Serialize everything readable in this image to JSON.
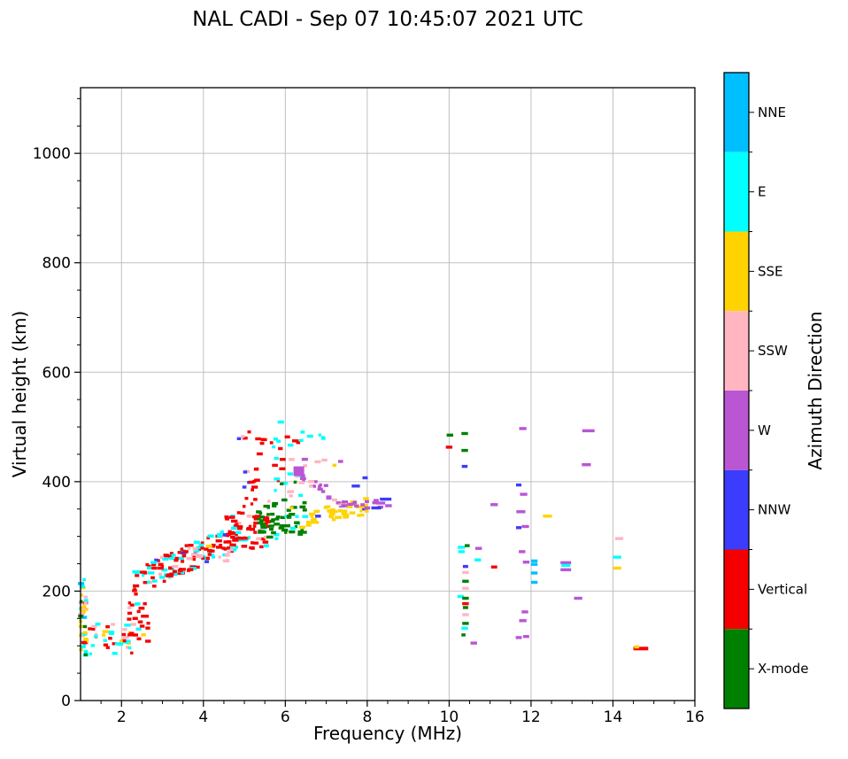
{
  "chart_data": {
    "type": "scatter",
    "title": "NAL CADI - Sep 07 10:45:07 2021 UTC",
    "xlabel": "Frequency (MHz)",
    "ylabel": "Virtual height (km)",
    "xlim": [
      1,
      16
    ],
    "ylim": [
      0,
      1120
    ],
    "xticks": [
      2,
      4,
      6,
      8,
      10,
      12,
      14,
      16
    ],
    "yticks": [
      0,
      200,
      400,
      600,
      800,
      1000
    ],
    "x_minor_step": 0.5,
    "y_minor_step": 50,
    "grid": true,
    "grid_color": "#c0c0c0",
    "colorbar": {
      "label": "Azimuth Direction",
      "categories": [
        {
          "name": "NNE",
          "color": "#00BFFF"
        },
        {
          "name": "E",
          "color": "#00FFFF"
        },
        {
          "name": "SSE",
          "color": "#FFD300"
        },
        {
          "name": "SSW",
          "color": "#FFB6C1"
        },
        {
          "name": "W",
          "color": "#BA55D3"
        },
        {
          "name": "NNW",
          "color": "#3C3CFC"
        },
        {
          "name": "Vertical",
          "color": "#F50000"
        },
        {
          "name": "X-mode",
          "color": "#008000"
        }
      ]
    },
    "clusters": [
      {
        "name": "edge-strip",
        "f": [
          1.0,
          1.14
        ],
        "h": [
          82,
          222
        ],
        "n": 42,
        "seed": 11,
        "mix": {
          "E": 0.3,
          "SSE": 0.22,
          "SSW": 0.2,
          "Vertical": 0.16,
          "NNE": 0.06,
          "X-mode": 0.06
        }
      },
      {
        "name": "low-scatter",
        "f": [
          1.2,
          2.25
        ],
        "h": [
          84,
          140
        ],
        "n": 36,
        "seed": 22,
        "mix": {
          "Vertical": 0.36,
          "E": 0.3,
          "SSW": 0.16,
          "SSE": 0.14,
          "NNW": 0.04
        }
      },
      {
        "name": "e-knot",
        "f": [
          2.18,
          2.68
        ],
        "h": [
          108,
          180
        ],
        "n": 26,
        "seed": 33,
        "mix": {
          "Vertical": 0.58,
          "E": 0.24,
          "SSW": 0.12,
          "SSE": 0.06
        }
      },
      {
        "name": "main-band",
        "f": [
          2.3,
          5.05
        ],
        "trend": {
          "h0": 216,
          "slope": 33,
          "jitter": 24
        },
        "n": 150,
        "seed": 44,
        "mix": {
          "Vertical": 0.56,
          "E": 0.31,
          "SSW": 0.09,
          "SSE": 0.02,
          "NNW": 0.02
        }
      },
      {
        "name": "f-blob",
        "f": [
          4.55,
          5.6
        ],
        "h": [
          278,
          338
        ],
        "n": 50,
        "seed": 55,
        "mix": {
          "Vertical": 0.72,
          "E": 0.18,
          "SSW": 0.1
        }
      },
      {
        "name": "red-spread",
        "f": [
          4.85,
          5.6
        ],
        "h": [
          338,
          500
        ],
        "n": 26,
        "seed": 66,
        "mix": {
          "Vertical": 0.86,
          "SSW": 0.09,
          "NNW": 0.05
        }
      },
      {
        "name": "red-top",
        "f": [
          5.6,
          6.45
        ],
        "h": [
          390,
          487
        ],
        "n": 10,
        "seed": 77,
        "mix": {
          "Vertical": 0.7,
          "E": 0.3
        }
      },
      {
        "name": "green-cluster",
        "f": [
          5.35,
          6.5
        ],
        "h": [
          295,
          360
        ],
        "n": 55,
        "seed": 88,
        "mix": {
          "X-mode": 0.82,
          "E": 0.18
        }
      },
      {
        "name": "green-high",
        "f": [
          5.9,
          6.5
        ],
        "h": [
          360,
          450
        ],
        "n": 9,
        "seed": 99,
        "mix": {
          "X-mode": 0.75,
          "SSW": 0.25
        }
      },
      {
        "name": "cyan-column",
        "f": [
          5.75,
          6.45
        ],
        "h": [
          360,
          512
        ],
        "n": 13,
        "seed": 110,
        "mix": {
          "E": 0.8,
          "NNE": 0.12,
          "Vertical": 0.08
        }
      },
      {
        "name": "cyan-pair",
        "f": [
          6.6,
          6.95
        ],
        "h": [
          448,
          492
        ],
        "n": 4,
        "seed": 121,
        "mix": {
          "E": 1.0
        }
      },
      {
        "name": "yellow-trace",
        "f": [
          6.35,
          8.0
        ],
        "trend": {
          "h0": 328,
          "slope": 17,
          "jitter": 15
        },
        "n": 48,
        "seed": 132,
        "mix": {
          "SSE": 0.9,
          "NNW": 0.05,
          "E": 0.05
        }
      },
      {
        "name": "purple-arc",
        "f": [
          6.3,
          8.35
        ],
        "arc": {
          "top": 418,
          "slope": 58,
          "floor": 357,
          "jitter": 9
        },
        "n": 30,
        "seed": 143,
        "mix": {
          "W": 0.95,
          "SSW": 0.05
        }
      },
      {
        "name": "pink-arc",
        "f": [
          6.4,
          7.05
        ],
        "h": [
          388,
          442
        ],
        "n": 8,
        "seed": 154,
        "mix": {
          "SSW": 0.85,
          "W": 0.15
        }
      },
      {
        "name": "pink-ledge",
        "f": [
          3.65,
          3.95
        ],
        "h": [
          256,
          280
        ],
        "n": 8,
        "seed": 165,
        "mix": {
          "SSW": 1.0
        }
      },
      {
        "name": "pink-mid",
        "f": [
          4.3,
          4.75
        ],
        "h": [
          252,
          278
        ],
        "n": 6,
        "seed": 176,
        "mix": {
          "SSW": 1.0
        }
      }
    ],
    "points": [
      [
        6.33,
        419,
        "W",
        0.26,
        11
      ],
      [
        7.35,
        437,
        "W",
        0.12
      ],
      [
        7.2,
        430,
        "SSE",
        0.1
      ],
      [
        5.0,
        390,
        "NNW",
        0.1
      ],
      [
        4.52,
        303,
        "NNW",
        0.1
      ],
      [
        6.8,
        337,
        "NNW",
        0.14
      ],
      [
        7.72,
        392,
        "NNW",
        0.2
      ],
      [
        7.95,
        407,
        "NNW",
        0.13
      ],
      [
        8.22,
        352,
        "NNW",
        0.24
      ],
      [
        8.45,
        368,
        "NNW",
        0.28
      ],
      [
        8.33,
        361,
        "W",
        0.22
      ],
      [
        8.52,
        356,
        "W",
        0.16
      ],
      [
        6.15,
        352,
        "SSE",
        0.1
      ],
      [
        10.02,
        485,
        "X-mode",
        0.16
      ],
      [
        10.38,
        488,
        "X-mode",
        0.16
      ],
      [
        10.0,
        463,
        "Vertical",
        0.16
      ],
      [
        10.38,
        457,
        "X-mode",
        0.16
      ],
      [
        10.38,
        428,
        "NNW",
        0.14
      ],
      [
        10.3,
        280,
        "E",
        0.18
      ],
      [
        10.44,
        283,
        "X-mode",
        0.12
      ],
      [
        10.3,
        272,
        "E",
        0.16
      ],
      [
        10.72,
        278,
        "W",
        0.16
      ],
      [
        10.7,
        257,
        "E",
        0.16
      ],
      [
        10.4,
        245,
        "NNW",
        0.13
      ],
      [
        10.4,
        234,
        "SSW",
        0.16
      ],
      [
        10.4,
        218,
        "X-mode",
        0.16
      ],
      [
        10.4,
        205,
        "SSW",
        0.16
      ],
      [
        10.28,
        190,
        "E",
        0.16
      ],
      [
        10.4,
        187,
        "X-mode",
        0.16
      ],
      [
        10.4,
        177,
        "Vertical",
        0.16
      ],
      [
        10.4,
        170,
        "X-mode",
        0.13
      ],
      [
        10.4,
        157,
        "SSW",
        0.16
      ],
      [
        10.4,
        141,
        "X-mode",
        0.16
      ],
      [
        10.38,
        132,
        "E",
        0.16
      ],
      [
        10.35,
        120,
        "X-mode",
        0.1
      ],
      [
        10.6,
        105,
        "W",
        0.16
      ],
      [
        11.1,
        358,
        "W",
        0.18
      ],
      [
        11.1,
        244,
        "Vertical",
        0.15
      ],
      [
        11.8,
        497,
        "W",
        0.18
      ],
      [
        11.7,
        394,
        "NNW",
        0.13
      ],
      [
        11.82,
        377,
        "W",
        0.18
      ],
      [
        11.75,
        345,
        "W",
        0.22
      ],
      [
        11.7,
        316,
        "NNW",
        0.13
      ],
      [
        11.86,
        318,
        "W",
        0.18
      ],
      [
        11.78,
        272,
        "W",
        0.16
      ],
      [
        11.88,
        253,
        "W",
        0.16
      ],
      [
        11.85,
        162,
        "W",
        0.16
      ],
      [
        11.8,
        146,
        "W",
        0.18
      ],
      [
        11.7,
        115,
        "W",
        0.15
      ],
      [
        11.88,
        117,
        "W",
        0.15
      ],
      [
        12.08,
        255,
        "NNE",
        0.16
      ],
      [
        12.08,
        249,
        "NNE",
        0.16
      ],
      [
        12.08,
        233,
        "NNE",
        0.16
      ],
      [
        12.08,
        216,
        "NNE",
        0.16
      ],
      [
        12.4,
        337,
        "SSE",
        0.22
      ],
      [
        12.85,
        252,
        "W",
        0.26
      ],
      [
        12.85,
        247,
        "E",
        0.22
      ],
      [
        12.85,
        239,
        "W",
        0.26
      ],
      [
        13.4,
        493,
        "W",
        0.3
      ],
      [
        13.35,
        431,
        "W",
        0.22
      ],
      [
        13.15,
        187,
        "W",
        0.2
      ],
      [
        14.15,
        296,
        "SSW",
        0.2
      ],
      [
        14.1,
        262,
        "E",
        0.2
      ],
      [
        14.1,
        242,
        "SSE",
        0.2
      ],
      [
        14.68,
        95,
        "Vertical",
        0.36,
        4
      ],
      [
        14.58,
        98,
        "SSE",
        0.12
      ]
    ]
  }
}
